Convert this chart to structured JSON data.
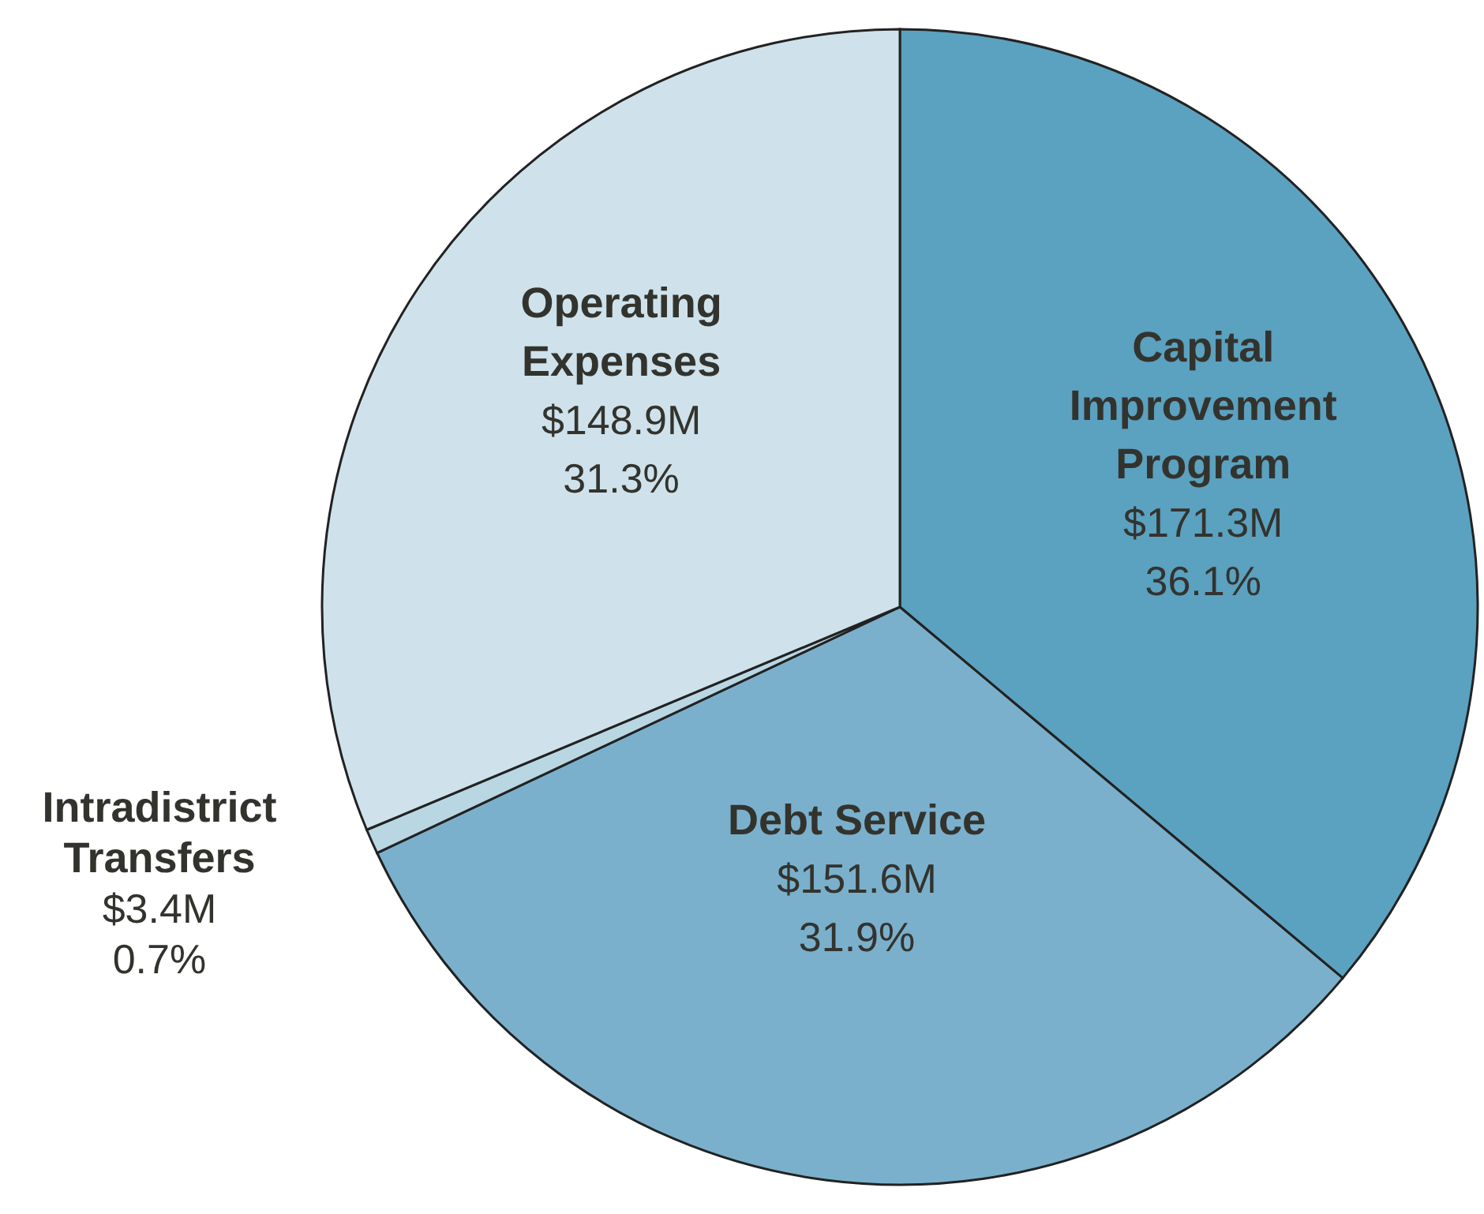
{
  "chart_data": {
    "type": "pie",
    "categories": [
      "Capital Improvement Program",
      "Debt Service",
      "Intradistrict Transfers",
      "Operating Expenses"
    ],
    "values": [
      36.1,
      31.9,
      0.7,
      31.3
    ],
    "colors": [
      "#5ba1c0",
      "#7ab0cc",
      "#b9d6e3",
      "#cfe2eb"
    ],
    "value_labels": [
      "$171.3M\n36.1%",
      "$151.6M\n31.9%",
      "$3.4M\n0.7%",
      "$148.9M\n31.3%"
    ]
  }
}
